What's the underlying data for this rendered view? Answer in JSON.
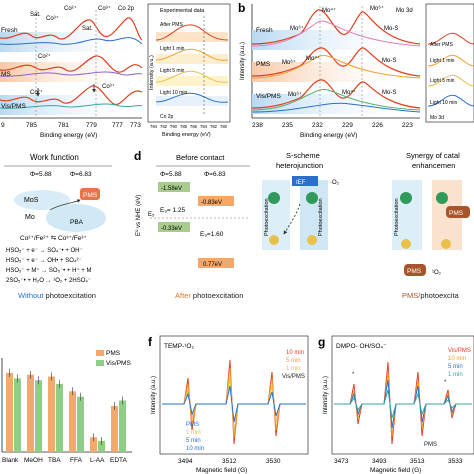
{
  "panel_a": {
    "xps_left": {
      "labels": [
        "Fresh",
        "Sat.",
        "Co³⁺",
        "Co²⁺",
        "Co³⁺",
        "Sat.",
        "Co 2p",
        "Co²⁺",
        "MS",
        "Co²⁺",
        "Co³⁺",
        "Vis/PMS"
      ],
      "xticks": [
        "9",
        "785",
        "781",
        "777",
        "773",
        "779"
      ],
      "xlabel": "Binding energy (eV)"
    },
    "inset": {
      "title": "Experimental data",
      "traces": [
        "After PMS",
        "Light 1 min",
        "Light 5 min",
        "Light 10 min"
      ],
      "corner": "Co 2p",
      "ylabel": "Intensity (a.u.)",
      "xticks": [
        "794",
        "792",
        "790",
        "788",
        "786",
        "784",
        "782",
        "780"
      ],
      "xlabel": "Binding energy (eV)"
    }
  },
  "panel_b": {
    "letter": "b",
    "corner": "Mo 3d",
    "labels": [
      "Fresh",
      "Mo⁶⁺",
      "Mo⁴⁺",
      "Mo⁶⁺",
      "Mo-S",
      "PMS",
      "Mo⁶⁺",
      "Mo⁴⁺",
      "Mo-S",
      "Vis/PMS",
      "Mo⁶⁺",
      "Mo⁴⁺",
      "Mo-S"
    ],
    "xticks": [
      "238",
      "235",
      "232",
      "229",
      "226",
      "223"
    ],
    "xlabel": "Binding energy (eV)",
    "ylabel": "Intensity (a.u.)",
    "inset_traces": [
      "After PMS",
      "Light 1 min",
      "Light 5 min",
      "Light 10 min"
    ],
    "inset_corner": "Mo 3d"
  },
  "panel_c": {
    "title": "Work function",
    "phi1": "Φ=5.88",
    "phi2": "Φ=6.83",
    "mos2": "MoS",
    "mo": "Mo",
    "pms": "PMS",
    "pba": "PBA",
    "redox": "Co²⁺/Fe²⁺ ⇆ Co³⁺/Fe³⁺",
    "eq1": "HSO₅⁻ + e⁻ → SO₄⁻• + OH⁻",
    "eq2": "HSO₅⁻ + e⁻ → OH• + SO₄²⁻",
    "eq3": "HSO₅⁻ + M⁺ → SO₅⁻• + H⁺ + M",
    "eq4": "2SO₅⁻• + H₂O → ¹O₂ + 2HSO₄⁻",
    "caption_pre": "Without",
    "caption_post": " photoexcitation"
  },
  "panel_d": {
    "letter": "d",
    "before_title": "Before contact",
    "phi1": "Φ=5.88",
    "phi2": "Φ=6.83",
    "ylabel": "E⁰ vs NHE (eV)",
    "e1": "-1.58eV",
    "e2": "-0.83eV",
    "e3": "-0.33eV",
    "e4": "0.77eV",
    "eg1": "E₉= 1.25",
    "eg2": "E₉=1.60",
    "ef": "E₅",
    "s_title1": "S-scheme",
    "s_title2": "heterojunction",
    "ief": "IEF",
    "o2": "·O₂",
    "photoexcitation": "Photoexcitation",
    "syn_title1": "Synergy of catal",
    "syn_title2": "enhancemen",
    "pms": "PMS",
    "singlet": "¹O₂",
    "caption_after_pre": "After",
    "caption_after_post": " photoexcitation",
    "caption_pms_pre": "PMS/",
    "caption_pms_post": "photoexcita"
  },
  "panel_e": {
    "legend": [
      "PMS",
      "Vis/PMS"
    ],
    "categories": [
      "Blank",
      "MeOH",
      "TBA",
      "FFA",
      "L-AA",
      "EDTA"
    ]
  },
  "panel_f": {
    "letter": "f",
    "tag": "TEMP-¹O₂",
    "ylabel": "Intensity (a.u.)",
    "xlabel": "Magnetic field (G)",
    "xticks": [
      "3494",
      "3512",
      "3530"
    ],
    "legend_right": [
      "10 min",
      "5 min",
      "1 min",
      "Vis/PMS"
    ],
    "legend_left": [
      "PMS",
      "1 min",
      "5 min",
      "10 min"
    ]
  },
  "panel_g": {
    "letter": "g",
    "tag": "DMPO- OH/SO₄⁻",
    "ylabel": "Intensity (a.u.)",
    "xlabel": "Magnetic field (G)",
    "xticks": [
      "3473",
      "3493",
      "3513",
      "3533"
    ],
    "legend": [
      "Vis/PMS",
      "10 min",
      "5 min",
      "1 min"
    ],
    "pms_label": "PMS",
    "marker": "*"
  },
  "colors": {
    "red": "#e0401f",
    "orange": "#f0a030",
    "gold": "#e8c04a",
    "teal": "#3aa6a0",
    "blue": "#2a6fc9",
    "navy": "#28407a",
    "pink": "#e77bb5",
    "purple": "#8a63c9",
    "green": "#58b06a",
    "bar_pms": "#f2a96e",
    "bar_vis": "#8fce86"
  }
}
